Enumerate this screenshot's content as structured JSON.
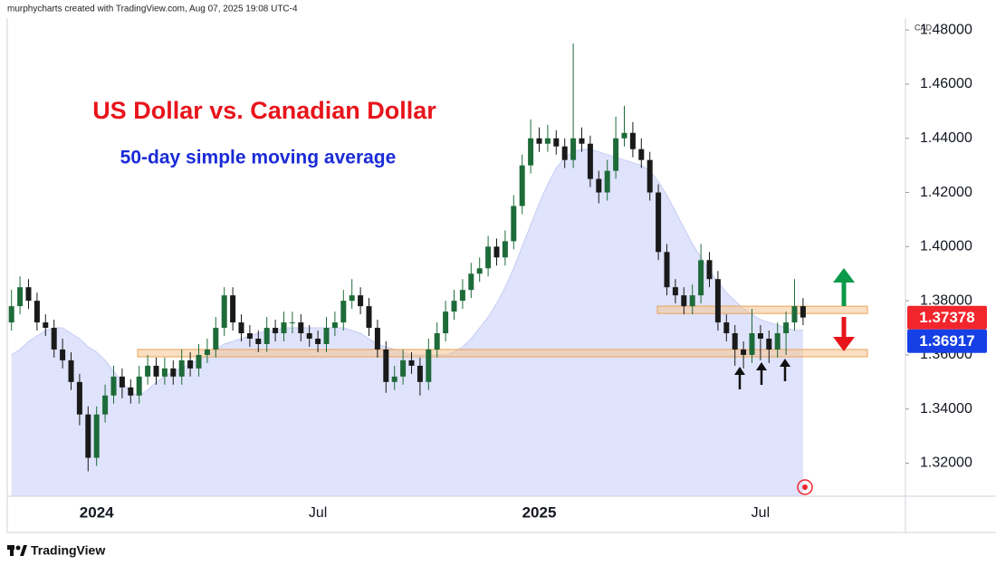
{
  "header": "murphycharts created with TradingView.com, Aug 07, 2025 19:08 UTC-4",
  "footer": "TradingView",
  "chart_data": {
    "type": "candlestick",
    "title": "US Dollar vs. Canadian Dollar",
    "subtitle": "50-day simple moving average",
    "currency": "CAD",
    "color_up": "#1e6b3a",
    "color_down": "#1a1a1a",
    "categories": [
      null,
      null,
      null,
      null,
      null,
      null,
      null,
      null,
      null,
      null,
      "2024",
      null,
      null,
      null,
      null,
      null,
      null,
      null,
      null,
      null,
      null,
      null,
      null,
      null,
      null,
      null,
      null,
      null,
      null,
      null,
      null,
      null,
      null,
      null,
      null,
      null,
      "Jul",
      null,
      null,
      null,
      null,
      null,
      null,
      null,
      null,
      null,
      null,
      null,
      null,
      null,
      null,
      null,
      null,
      null,
      null,
      null,
      null,
      null,
      null,
      null,
      null,
      null,
      "2025",
      null,
      null,
      null,
      null,
      null,
      null,
      null,
      null,
      null,
      null,
      null,
      null,
      null,
      null,
      null,
      null,
      null,
      null,
      null,
      null,
      null,
      null,
      null,
      null,
      null,
      "Jul",
      null,
      null,
      null,
      null,
      null
    ],
    "candles": [
      [
        1.372,
        1.384,
        1.369,
        1.378
      ],
      [
        1.378,
        1.389,
        1.375,
        1.385
      ],
      [
        1.385,
        1.388,
        1.377,
        1.38
      ],
      [
        1.38,
        1.383,
        1.369,
        1.372
      ],
      [
        1.372,
        1.375,
        1.367,
        1.37
      ],
      [
        1.37,
        1.373,
        1.359,
        1.362
      ],
      [
        1.362,
        1.366,
        1.355,
        1.358
      ],
      [
        1.358,
        1.361,
        1.347,
        1.35
      ],
      [
        1.35,
        1.353,
        1.334,
        1.338
      ],
      [
        1.338,
        1.341,
        1.317,
        1.322
      ],
      [
        1.322,
        1.341,
        1.319,
        1.338
      ],
      [
        1.338,
        1.349,
        1.335,
        1.345
      ],
      [
        1.345,
        1.356,
        1.342,
        1.352
      ],
      [
        1.352,
        1.355,
        1.344,
        1.348
      ],
      [
        1.348,
        1.351,
        1.342,
        1.345
      ],
      [
        1.345,
        1.356,
        1.342,
        1.352
      ],
      [
        1.352,
        1.36,
        1.349,
        1.356
      ],
      [
        1.356,
        1.359,
        1.349,
        1.352
      ],
      [
        1.352,
        1.359,
        1.349,
        1.355
      ],
      [
        1.355,
        1.358,
        1.349,
        1.352
      ],
      [
        1.352,
        1.362,
        1.349,
        1.358
      ],
      [
        1.358,
        1.361,
        1.352,
        1.355
      ],
      [
        1.355,
        1.364,
        1.352,
        1.36
      ],
      [
        1.36,
        1.366,
        1.357,
        1.362
      ],
      [
        1.362,
        1.374,
        1.359,
        1.37
      ],
      [
        1.37,
        1.385,
        1.367,
        1.382
      ],
      [
        1.382,
        1.385,
        1.369,
        1.372
      ],
      [
        1.372,
        1.375,
        1.365,
        1.368
      ],
      [
        1.368,
        1.371,
        1.363,
        1.366
      ],
      [
        1.366,
        1.369,
        1.361,
        1.364
      ],
      [
        1.364,
        1.374,
        1.361,
        1.37
      ],
      [
        1.37,
        1.373,
        1.365,
        1.368
      ],
      [
        1.368,
        1.376,
        1.365,
        1.372
      ],
      [
        1.372,
        1.376,
        1.368,
        1.372
      ],
      [
        1.372,
        1.375,
        1.365,
        1.368
      ],
      [
        1.368,
        1.371,
        1.363,
        1.366
      ],
      [
        1.366,
        1.369,
        1.361,
        1.364
      ],
      [
        1.364,
        1.374,
        1.361,
        1.37
      ],
      [
        1.37,
        1.376,
        1.367,
        1.372
      ],
      [
        1.372,
        1.384,
        1.369,
        1.38
      ],
      [
        1.38,
        1.388,
        1.377,
        1.382
      ],
      [
        1.382,
        1.385,
        1.375,
        1.378
      ],
      [
        1.378,
        1.381,
        1.367,
        1.37
      ],
      [
        1.37,
        1.373,
        1.359,
        1.362
      ],
      [
        1.362,
        1.365,
        1.346,
        1.35
      ],
      [
        1.35,
        1.356,
        1.347,
        1.352
      ],
      [
        1.352,
        1.362,
        1.349,
        1.358
      ],
      [
        1.358,
        1.361,
        1.353,
        1.356
      ],
      [
        1.356,
        1.359,
        1.345,
        1.35
      ],
      [
        1.35,
        1.366,
        1.347,
        1.362
      ],
      [
        1.362,
        1.372,
        1.359,
        1.368
      ],
      [
        1.368,
        1.38,
        1.365,
        1.376
      ],
      [
        1.376,
        1.384,
        1.373,
        1.38
      ],
      [
        1.38,
        1.388,
        1.377,
        1.384
      ],
      [
        1.384,
        1.394,
        1.381,
        1.39
      ],
      [
        1.39,
        1.396,
        1.387,
        1.392
      ],
      [
        1.392,
        1.404,
        1.389,
        1.4
      ],
      [
        1.4,
        1.403,
        1.393,
        1.396
      ],
      [
        1.396,
        1.406,
        1.393,
        1.402
      ],
      [
        1.402,
        1.419,
        1.399,
        1.415
      ],
      [
        1.415,
        1.434,
        1.412,
        1.43
      ],
      [
        1.43,
        1.447,
        1.427,
        1.44
      ],
      [
        1.44,
        1.444,
        1.435,
        1.438
      ],
      [
        1.438,
        1.445,
        1.435,
        1.44
      ],
      [
        1.44,
        1.443,
        1.434,
        1.437
      ],
      [
        1.437,
        1.44,
        1.429,
        1.432
      ],
      [
        1.432,
        1.475,
        1.429,
        1.44
      ],
      [
        1.44,
        1.444,
        1.435,
        1.438
      ],
      [
        1.438,
        1.441,
        1.422,
        1.425
      ],
      [
        1.425,
        1.428,
        1.416,
        1.42
      ],
      [
        1.42,
        1.432,
        1.417,
        1.428
      ],
      [
        1.428,
        1.448,
        1.425,
        1.44
      ],
      [
        1.44,
        1.452,
        1.437,
        1.442
      ],
      [
        1.442,
        1.446,
        1.433,
        1.436
      ],
      [
        1.436,
        1.44,
        1.429,
        1.432
      ],
      [
        1.432,
        1.435,
        1.417,
        1.42
      ],
      [
        1.42,
        1.423,
        1.395,
        1.398
      ],
      [
        1.398,
        1.401,
        1.382,
        1.385
      ],
      [
        1.385,
        1.388,
        1.379,
        1.382
      ],
      [
        1.382,
        1.385,
        1.375,
        1.378
      ],
      [
        1.378,
        1.386,
        1.375,
        1.382
      ],
      [
        1.382,
        1.401,
        1.379,
        1.395
      ],
      [
        1.395,
        1.398,
        1.385,
        1.388
      ],
      [
        1.388,
        1.391,
        1.369,
        1.372
      ],
      [
        1.372,
        1.375,
        1.365,
        1.368
      ],
      [
        1.368,
        1.371,
        1.356,
        1.362
      ],
      [
        1.362,
        1.365,
        1.355,
        1.36
      ],
      [
        1.36,
        1.377,
        1.357,
        1.368
      ],
      [
        1.368,
        1.371,
        1.358,
        1.366
      ],
      [
        1.366,
        1.369,
        1.357,
        1.362
      ],
      [
        1.362,
        1.372,
        1.359,
        1.368
      ],
      [
        1.368,
        1.376,
        1.36,
        1.372
      ],
      [
        1.372,
        1.388,
        1.369,
        1.378
      ],
      [
        1.378,
        1.381,
        1.371,
        1.3738
      ]
    ],
    "sma": {
      "color": "#dfe3fb",
      "line_color": "#c5cdf3",
      "values": [
        1.36,
        1.362,
        1.365,
        1.367,
        1.369,
        1.37,
        1.37,
        1.368,
        1.366,
        1.363,
        1.361,
        1.358,
        1.354,
        1.35,
        1.346,
        1.345,
        1.347,
        1.35,
        1.352,
        1.354,
        1.355,
        1.357,
        1.358,
        1.36,
        1.362,
        1.364,
        1.365,
        1.366,
        1.367,
        1.368,
        1.369,
        1.369,
        1.37,
        1.37,
        1.37,
        1.37,
        1.37,
        1.37,
        1.37,
        1.37,
        1.369,
        1.368,
        1.366,
        1.364,
        1.363,
        1.362,
        1.361,
        1.36,
        1.36,
        1.36,
        1.36,
        1.36,
        1.361,
        1.363,
        1.366,
        1.37,
        1.374,
        1.379,
        1.385,
        1.392,
        1.4,
        1.408,
        1.416,
        1.423,
        1.429,
        1.433,
        1.435,
        1.436,
        1.436,
        1.435,
        1.434,
        1.433,
        1.432,
        1.431,
        1.43,
        1.428,
        1.424,
        1.419,
        1.413,
        1.407,
        1.401,
        1.396,
        1.391,
        1.387,
        1.383,
        1.38,
        1.377,
        1.375,
        1.373,
        1.372,
        1.371,
        1.37,
        1.369,
        1.36917
      ]
    },
    "last_price": {
      "value": 1.37378,
      "color": "#f2252c"
    },
    "sma_last": {
      "value": 1.36917,
      "color": "#1640e6"
    },
    "zones": [
      {
        "low": 1.3753,
        "high": 1.378,
        "color": "#f6c48f"
      },
      {
        "low": 1.3593,
        "high": 1.362,
        "color": "#f6c48f"
      }
    ],
    "ylim": [
      1.3078,
      1.4844
    ],
    "yticks": [
      {
        "value": 1.32,
        "label": "1.32000"
      },
      {
        "value": 1.34,
        "label": "1.34000"
      },
      {
        "value": 1.36,
        "label": "1.36000"
      },
      {
        "value": 1.38,
        "label": "1.38000"
      },
      {
        "value": 1.4,
        "label": "1.40000"
      },
      {
        "value": 1.42,
        "label": "1.42000"
      },
      {
        "value": 1.44,
        "label": "1.44000"
      },
      {
        "value": 1.46,
        "label": "1.46000"
      },
      {
        "value": 1.48,
        "label": "1.48000"
      }
    ]
  }
}
